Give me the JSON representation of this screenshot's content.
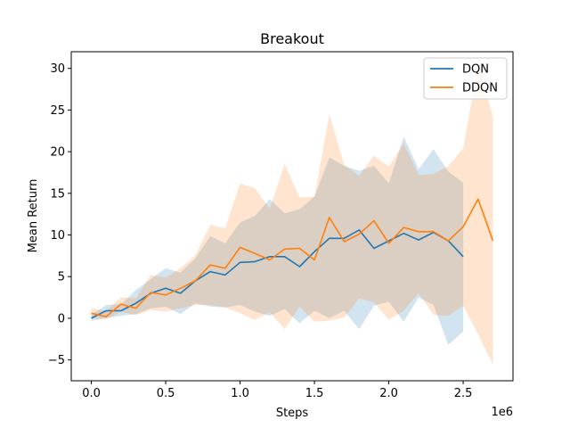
{
  "chart_data": {
    "type": "line",
    "title": "Breakout",
    "xlabel": "Steps",
    "ylabel": "Mean Return",
    "x_offset_label": "1e6",
    "xlim": [
      -0.135,
      2.835
    ],
    "ylim": [
      -7.5,
      32
    ],
    "x_ticks": [
      0.0,
      0.5,
      1.0,
      1.5,
      2.0,
      2.5
    ],
    "x_tick_labels": [
      "0.0",
      "0.5",
      "1.0",
      "1.5",
      "2.0",
      "2.5"
    ],
    "y_ticks": [
      -5,
      0,
      5,
      10,
      15,
      20,
      25,
      30
    ],
    "y_tick_labels": [
      "−5",
      "0",
      "5",
      "10",
      "15",
      "20",
      "25",
      "30"
    ],
    "grid": false,
    "legend_position": "top-right",
    "series": [
      {
        "name": "DQN",
        "color": "#1f77b4",
        "x": [
          0.0,
          0.1,
          0.2,
          0.3,
          0.4,
          0.5,
          0.6,
          0.7,
          0.8,
          0.9,
          1.0,
          1.1,
          1.2,
          1.3,
          1.4,
          1.5,
          1.6,
          1.7,
          1.8,
          1.9,
          2.0,
          2.1,
          2.2,
          2.3,
          2.4,
          2.5
        ],
        "y": [
          0.0,
          0.9,
          0.9,
          1.8,
          3.0,
          3.6,
          3.0,
          4.5,
          5.6,
          5.2,
          6.7,
          6.8,
          7.4,
          7.4,
          6.2,
          8.0,
          9.6,
          9.6,
          10.6,
          8.4,
          9.3,
          10.2,
          9.4,
          10.3,
          9.3,
          7.4
        ],
        "lower": [
          -0.3,
          0.0,
          0.3,
          0.5,
          1.2,
          1.4,
          0.5,
          1.8,
          1.4,
          1.3,
          1.6,
          0.8,
          0.3,
          1.1,
          -0.6,
          0.9,
          0.0,
          0.9,
          -1.3,
          1.5,
          2.0,
          -0.4,
          2.5,
          1.6,
          -3.2,
          -1.6
        ],
        "upper": [
          0.4,
          1.6,
          1.7,
          3.4,
          4.7,
          6.0,
          5.5,
          7.2,
          9.9,
          9.0,
          11.5,
          12.3,
          14.3,
          12.6,
          13.1,
          14.6,
          19.3,
          18.3,
          17.7,
          18.3,
          16.2,
          21.8,
          17.9,
          20.3,
          17.6,
          16.3
        ]
      },
      {
        "name": "DDQN",
        "color": "#ff7f0e",
        "x": [
          0.0,
          0.1,
          0.2,
          0.3,
          0.4,
          0.5,
          0.6,
          0.7,
          0.8,
          0.9,
          1.0,
          1.1,
          1.2,
          1.3,
          1.4,
          1.5,
          1.6,
          1.7,
          1.8,
          1.9,
          2.0,
          2.1,
          2.2,
          2.3,
          2.4,
          2.5,
          2.6,
          2.7
        ],
        "y": [
          0.6,
          0.2,
          1.7,
          1.2,
          3.1,
          2.8,
          3.6,
          4.5,
          6.4,
          6.0,
          8.5,
          7.8,
          7.0,
          8.3,
          8.4,
          7.0,
          12.1,
          9.2,
          10.1,
          11.7,
          9.0,
          10.9,
          10.4,
          10.4,
          9.3,
          11.0,
          14.3,
          9.3
        ],
        "lower": [
          0.0,
          -0.1,
          0.8,
          0.4,
          1.0,
          0.8,
          1.2,
          1.6,
          1.6,
          1.3,
          0.6,
          -0.2,
          0.7,
          -1.3,
          1.4,
          -0.4,
          -0.3,
          0.1,
          2.4,
          1.9,
          -0.2,
          0.9,
          3.0,
          0.4,
          0.3,
          1.5,
          -1.9,
          -5.6
        ],
        "upper": [
          1.2,
          0.9,
          2.5,
          2.4,
          5.2,
          4.9,
          6.0,
          7.6,
          11.2,
          10.8,
          16.2,
          15.6,
          13.2,
          18.5,
          14.5,
          14.6,
          24.5,
          18.4,
          17.1,
          19.5,
          18.2,
          21.0,
          17.2,
          17.3,
          18.3,
          20.4,
          30.5,
          24.2
        ]
      }
    ]
  }
}
